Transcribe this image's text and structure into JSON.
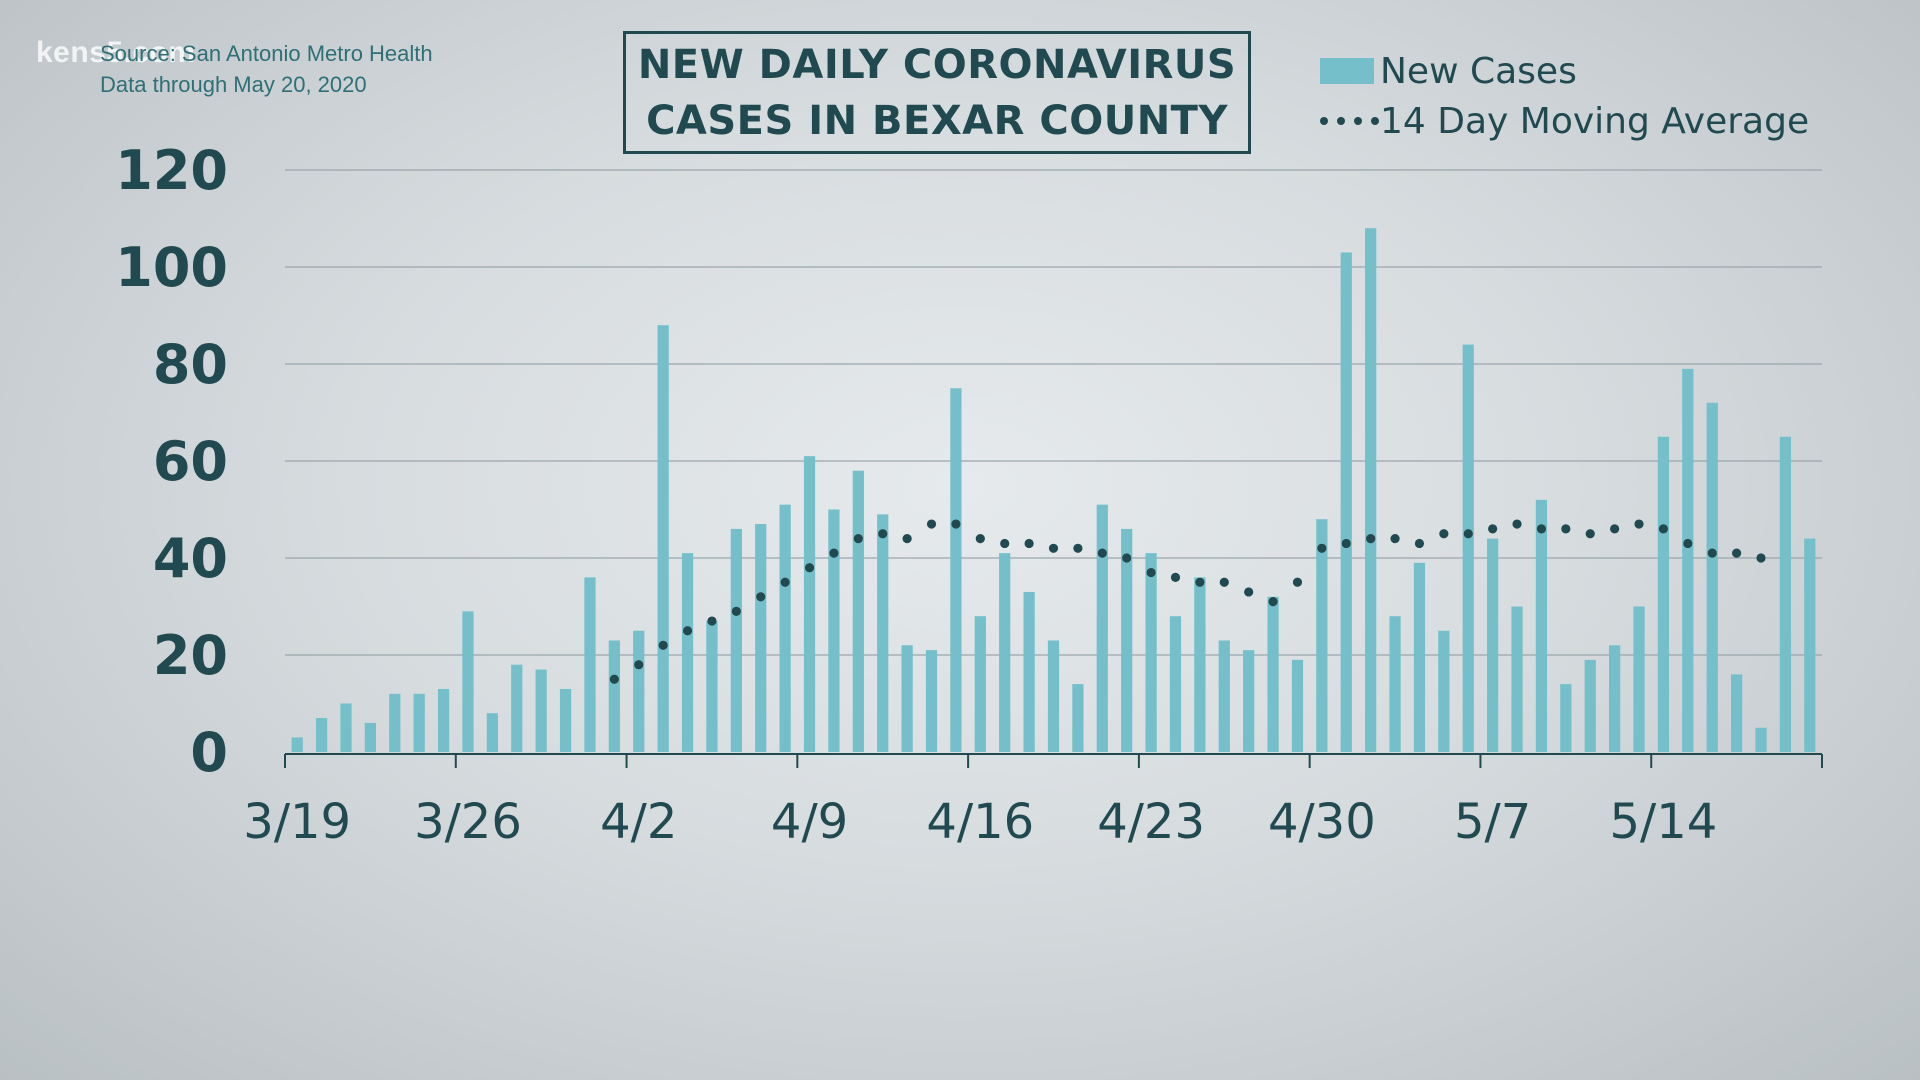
{
  "watermark": "kens5.com",
  "source_lines": [
    "Source: San Antonio Metro Health",
    "Data through May 20, 2020"
  ],
  "title_lines": [
    "NEW DAILY CORONAVIRUS",
    "CASES IN BEXAR COUNTY"
  ],
  "legend": {
    "bar_label": "New Cases",
    "line_label": "14 Day Moving Average"
  },
  "colors": {
    "bar": "#74bfc9",
    "dots": "#214a50",
    "text": "#214a50",
    "grid": "#9aa6ab"
  },
  "chart_data": {
    "type": "bar",
    "title": "NEW DAILY CORONAVIRUS CASES IN BEXAR COUNTY",
    "xlabel": "",
    "ylabel": "",
    "ylim": [
      0,
      120
    ],
    "yticks": [
      0,
      20,
      40,
      60,
      80,
      100,
      120
    ],
    "grid": true,
    "legend_position": "top-right",
    "x_tick_labels": [
      {
        "index": 0,
        "label": "3/19"
      },
      {
        "index": 7,
        "label": "3/26"
      },
      {
        "index": 14,
        "label": "4/2"
      },
      {
        "index": 21,
        "label": "4/9"
      },
      {
        "index": 28,
        "label": "4/16"
      },
      {
        "index": 35,
        "label": "4/23"
      },
      {
        "index": 42,
        "label": "4/30"
      },
      {
        "index": 49,
        "label": "5/7"
      },
      {
        "index": 56,
        "label": "5/14"
      }
    ],
    "series": [
      {
        "name": "New Cases",
        "kind": "bar",
        "values": [
          3,
          7,
          10,
          6,
          12,
          12,
          13,
          29,
          8,
          18,
          17,
          13,
          36,
          23,
          25,
          88,
          41,
          27,
          46,
          47,
          51,
          61,
          50,
          58,
          49,
          22,
          21,
          75,
          28,
          41,
          33,
          23,
          14,
          51,
          46,
          41,
          28,
          36,
          23,
          21,
          32,
          19,
          48,
          103,
          108,
          28,
          39,
          25,
          84,
          44,
          30,
          52,
          14,
          19,
          22,
          30,
          65,
          79,
          72,
          16,
          5,
          65,
          44
        ]
      },
      {
        "name": "14 Day Moving Average",
        "kind": "dotted-line",
        "start_index": 13,
        "values": [
          15,
          18,
          22,
          25,
          27,
          29,
          32,
          35,
          38,
          41,
          44,
          45,
          44,
          47,
          47,
          44,
          43,
          43,
          42,
          42,
          41,
          40,
          37,
          36,
          35,
          35,
          33,
          31,
          35,
          42,
          43,
          44,
          44,
          43,
          45,
          45,
          46,
          47,
          46,
          46,
          45,
          46,
          47,
          46,
          43,
          41,
          41,
          40
        ]
      }
    ]
  }
}
